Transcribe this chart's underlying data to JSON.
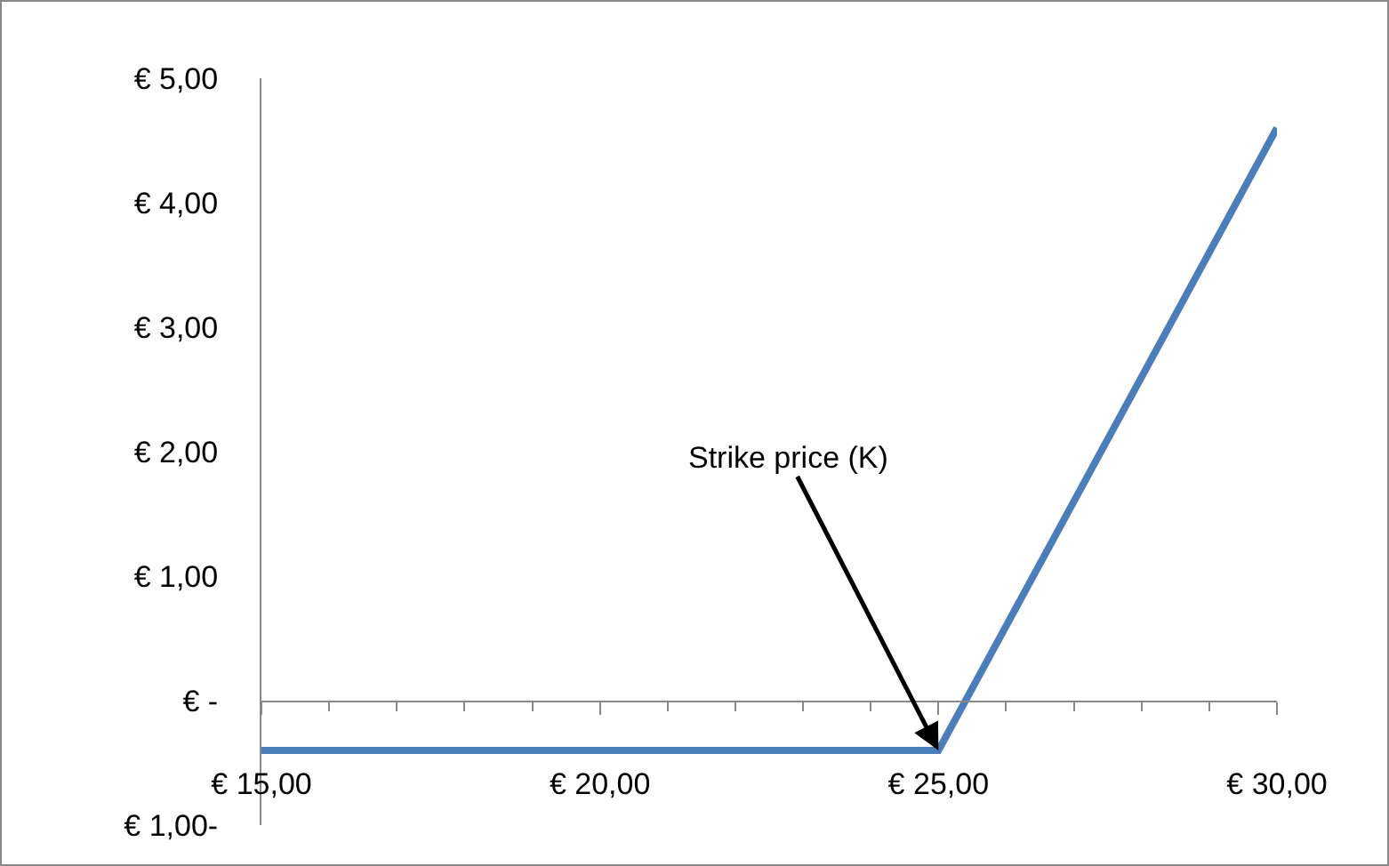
{
  "chart_data": {
    "type": "line",
    "x": [
      15,
      25,
      30
    ],
    "series": [
      {
        "color": "#4a7ebb",
        "values": [
          -0.4,
          -0.4,
          4.6
        ]
      }
    ],
    "xlim": [
      15,
      30
    ],
    "xticks": [
      {
        "value": 15,
        "label": "€ 15,00"
      },
      {
        "value": 20,
        "label": "€ 20,00"
      },
      {
        "value": 25,
        "label": "€ 25,00"
      },
      {
        "value": 30,
        "label": "€ 30,00"
      }
    ],
    "ylim": [
      -1,
      5
    ],
    "yticks": [
      {
        "value": -1,
        "label": "€ 1,00-"
      },
      {
        "value": 0,
        "label": "€ -"
      },
      {
        "value": 1,
        "label": "€ 1,00"
      },
      {
        "value": 2,
        "label": "€ 2,00"
      },
      {
        "value": 3,
        "label": "€ 3,00"
      },
      {
        "value": 4,
        "label": "€ 4,00"
      },
      {
        "value": 5,
        "label": "€ 5,00"
      }
    ],
    "annotations": [
      {
        "text": "Strike price (K)",
        "x": 25,
        "y": -0.4
      }
    ],
    "marker": "none",
    "line_style": "solid"
  }
}
